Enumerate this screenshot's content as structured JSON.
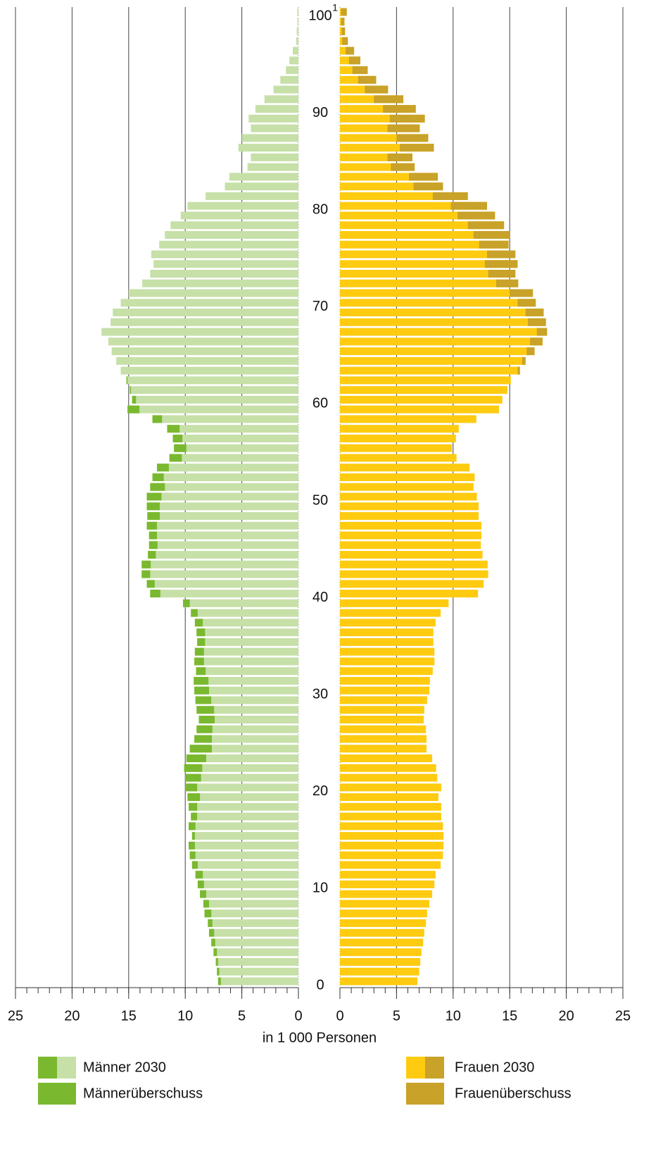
{
  "chart_data": {
    "type": "pyramid",
    "x_axis_label": "in 1 000 Personen",
    "footnote_marker": "1",
    "categories": [
      0,
      null,
      null,
      null,
      null,
      null,
      null,
      null,
      null,
      null,
      10,
      null,
      null,
      null,
      null,
      null,
      null,
      null,
      null,
      null,
      20,
      null,
      null,
      null,
      null,
      null,
      null,
      null,
      null,
      null,
      30,
      null,
      null,
      null,
      null,
      null,
      null,
      null,
      null,
      null,
      40,
      null,
      null,
      null,
      null,
      null,
      null,
      null,
      null,
      null,
      50,
      null,
      null,
      null,
      null,
      null,
      null,
      null,
      null,
      null,
      60,
      null,
      null,
      null,
      null,
      null,
      null,
      null,
      null,
      null,
      70,
      null,
      null,
      null,
      null,
      null,
      null,
      null,
      null,
      null,
      80,
      null,
      null,
      null,
      null,
      null,
      null,
      null,
      null,
      null,
      90,
      null,
      null,
      null,
      null,
      null,
      null,
      null,
      null,
      null,
      100
    ],
    "xlim": [
      0,
      25
    ],
    "xticks": [
      0,
      5,
      10,
      15,
      20,
      25
    ],
    "minor_tick_step": 1,
    "grid": true,
    "series": [
      {
        "name": "Männer 2030",
        "color": "#c6e0a8",
        "surplus_name": "Männerüberschuss",
        "surplus_color": "#7ab92f",
        "values": [
          7.1,
          7.2,
          7.3,
          7.5,
          7.7,
          7.9,
          8.0,
          8.3,
          8.4,
          8.7,
          8.9,
          9.1,
          9.4,
          9.6,
          9.7,
          9.4,
          9.7,
          9.5,
          9.7,
          9.8,
          10.0,
          10.0,
          10.1,
          9.9,
          9.6,
          9.2,
          9.0,
          8.8,
          9.0,
          9.1,
          9.2,
          9.25,
          9.05,
          9.2,
          9.15,
          8.95,
          9.0,
          9.15,
          9.5,
          10.2,
          13.1,
          13.4,
          13.85,
          13.85,
          13.3,
          13.2,
          13.2,
          13.4,
          13.35,
          13.4,
          13.4,
          13.1,
          12.9,
          12.5,
          11.4,
          11.0,
          11.1,
          11.6,
          12.9,
          15.1,
          14.7,
          14.9,
          15.2,
          15.7,
          16.1,
          16.5,
          16.8,
          17.4,
          16.6,
          16.4,
          15.7,
          15.0,
          13.8,
          13.1,
          12.8,
          13.0,
          12.3,
          11.8,
          11.3,
          10.4,
          9.8,
          8.2,
          6.5,
          6.1,
          4.5,
          4.2,
          5.3,
          5.0,
          4.2,
          4.4,
          3.8,
          3.0,
          2.2,
          1.6,
          1.1,
          0.8,
          0.5,
          0.2,
          0.15,
          0.1,
          0.1
        ]
      },
      {
        "name": "Frauen 2030",
        "color": "#fecb10",
        "surplus_name": "Frauenüberschuss",
        "surplus_color": "#c8a229",
        "values": [
          6.85,
          7.0,
          7.1,
          7.2,
          7.35,
          7.45,
          7.6,
          7.7,
          7.9,
          8.15,
          8.35,
          8.45,
          8.9,
          9.1,
          9.15,
          9.15,
          9.1,
          8.95,
          8.95,
          8.7,
          8.95,
          8.6,
          8.5,
          8.15,
          7.65,
          7.65,
          7.6,
          7.4,
          7.45,
          7.7,
          7.9,
          7.95,
          8.2,
          8.35,
          8.35,
          8.25,
          8.25,
          8.45,
          8.9,
          9.6,
          12.2,
          12.7,
          13.1,
          13.05,
          12.6,
          12.45,
          12.5,
          12.5,
          12.25,
          12.25,
          12.1,
          11.8,
          11.9,
          11.45,
          10.3,
          9.9,
          10.25,
          10.5,
          12.05,
          14.05,
          14.35,
          14.8,
          15.1,
          15.9,
          16.4,
          17.2,
          17.9,
          18.3,
          18.2,
          18.0,
          17.3,
          17.05,
          15.75,
          15.5,
          15.7,
          15.5,
          14.9,
          15.0,
          14.5,
          13.7,
          13.0,
          11.3,
          9.1,
          8.65,
          6.6,
          6.4,
          8.3,
          7.8,
          7.05,
          7.5,
          6.7,
          5.6,
          4.25,
          3.2,
          2.45,
          1.8,
          1.25,
          0.7,
          0.45,
          0.4,
          0.6
        ]
      }
    ]
  }
}
